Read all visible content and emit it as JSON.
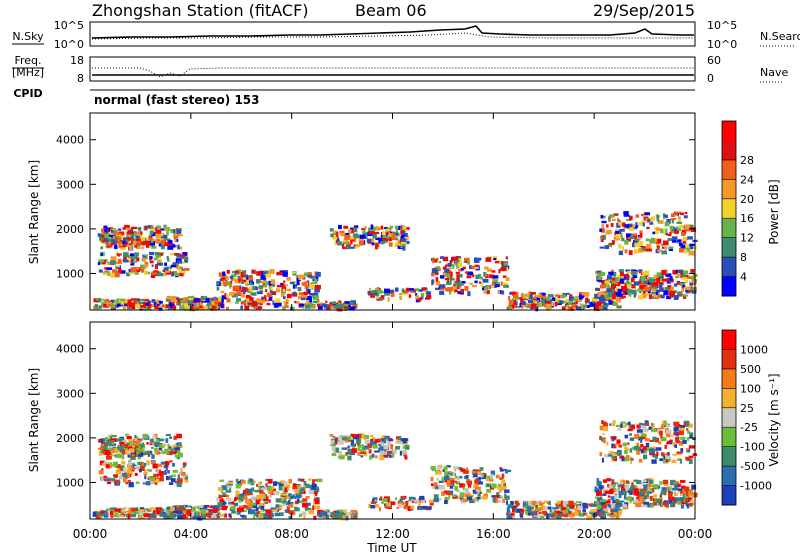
{
  "header": {
    "station": "Zhongshan Station (fitACF)",
    "beam": "Beam 06",
    "date": "29/Sep/2015"
  },
  "noise_panel": {
    "left_label": "N.Sky",
    "right_label": "N.Search",
    "left_ticks": [
      "10^5",
      "10^0"
    ],
    "right_ticks": [
      "10^5",
      "10^0"
    ]
  },
  "freq_panel": {
    "left_label": "Freq.",
    "left_unit": "[MHz]",
    "left_ticks": [
      "18",
      "8"
    ],
    "right_label": "Nave",
    "right_ticks": [
      "60",
      "0"
    ],
    "cpid_label": "CPID",
    "cpid_text": "normal (fast stereo) 153"
  },
  "chart_data": [
    {
      "type": "heatmap",
      "title": "",
      "xlabel": "Time UT",
      "ylabel": "Slant Range [km]",
      "x_ticks": [
        "00:00",
        "04:00",
        "08:00",
        "12:00",
        "16:00",
        "20:00",
        "00:00"
      ],
      "xlim": [
        0,
        24
      ],
      "y_ticks": [
        "1000",
        "2000",
        "3000",
        "4000"
      ],
      "ylim": [
        180,
        4600
      ],
      "colorbar": {
        "label": "Power [dB]",
        "ticks": [
          "4",
          "8",
          "12",
          "16",
          "20",
          "24",
          "28"
        ],
        "colors": [
          "#0000ff",
          "#2b4fb8",
          "#3d8a72",
          "#66b34a",
          "#f2d22a",
          "#f59a2a",
          "#f25f1a",
          "#e01010",
          "#ff0000"
        ]
      }
    },
    {
      "type": "heatmap",
      "title": "",
      "xlabel": "Time UT",
      "ylabel": "Slant Range [km]",
      "x_ticks": [
        "00:00",
        "04:00",
        "08:00",
        "12:00",
        "16:00",
        "20:00",
        "00:00"
      ],
      "xlim": [
        0,
        24
      ],
      "y_ticks": [
        "1000",
        "2000",
        "3000",
        "4000"
      ],
      "ylim": [
        180,
        4600
      ],
      "colorbar": {
        "label": "Velocity [m s⁻¹]",
        "ticks": [
          "1000",
          "500",
          "100",
          "25",
          "-25",
          "-100",
          "-500",
          "-1000"
        ],
        "colors": [
          "#1e3fb8",
          "#2b6fb0",
          "#3d8a6a",
          "#6abf3a",
          "#c8c8c0",
          "#f5b030",
          "#f57a1a",
          "#e03010",
          "#ff0000"
        ]
      }
    }
  ]
}
